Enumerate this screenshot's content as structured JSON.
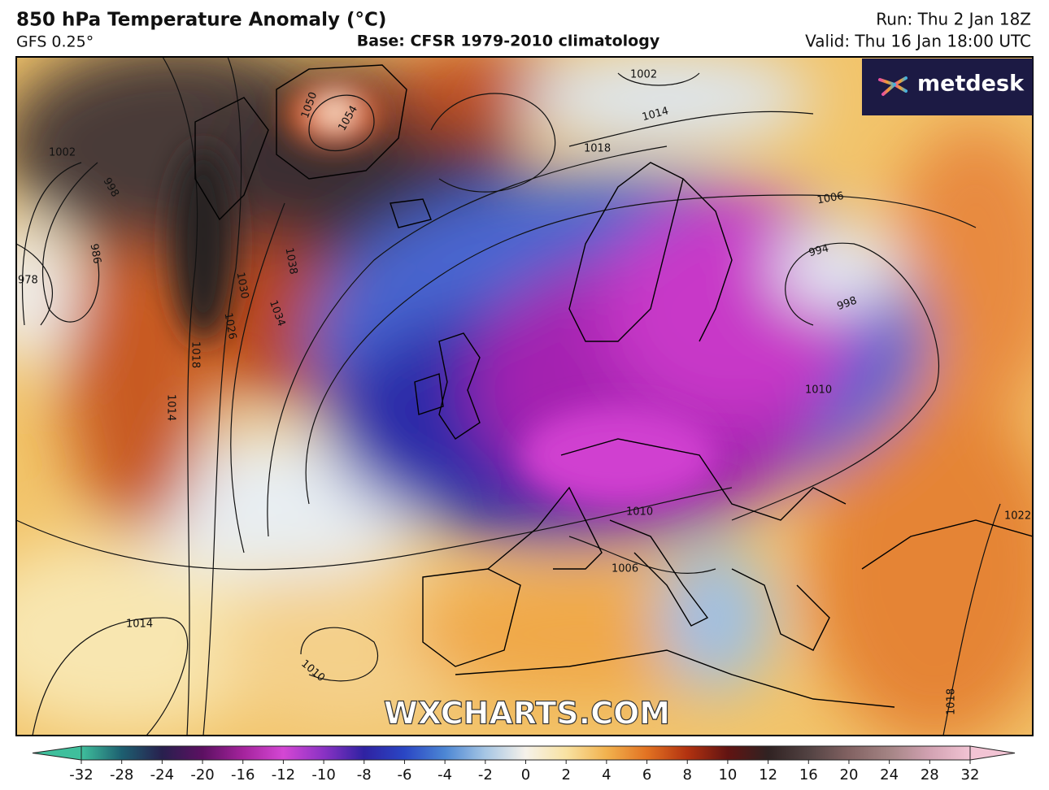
{
  "header": {
    "title": "850 hPa Temperature Anomaly (°C)",
    "model": "GFS 0.25°",
    "base": "Base: CFSR 1979-2010 climatology",
    "run": "Run: Thu 2 Jan 18Z",
    "valid": "Valid: Thu 16 Jan 18:00 UTC"
  },
  "logo": "metdesk",
  "watermark": "WXCHARTS.COM",
  "isobar_labels": [
    "1050",
    "1054",
    "1002",
    "1014",
    "1018",
    "1006",
    "994",
    "998",
    "1010",
    "1014",
    "1018",
    "1026",
    "1034",
    "1038",
    "1030",
    "1010",
    "1006",
    "1014",
    "1010",
    "986",
    "978",
    "1022",
    "1018",
    "1002",
    "998"
  ],
  "colorbar": {
    "ticks": [
      -32,
      -28,
      -24,
      -20,
      -16,
      -12,
      -10,
      -8,
      -6,
      -4,
      -2,
      0,
      2,
      4,
      6,
      8,
      10,
      12,
      16,
      20,
      24,
      28,
      32
    ],
    "colors": [
      "#3fbf9c",
      "#1d5f70",
      "#28204e",
      "#5c1062",
      "#a4239c",
      "#d447d4",
      "#8a32c4",
      "#2f22a2",
      "#2a46c4",
      "#4c86d4",
      "#a6c6e4",
      "#f6f2ea",
      "#f8e2a2",
      "#f2b24e",
      "#e27222",
      "#b23210",
      "#621412",
      "#302222",
      "#524242",
      "#826262",
      "#a48484",
      "#d2a2b2",
      "#f2c4d4"
    ]
  }
}
